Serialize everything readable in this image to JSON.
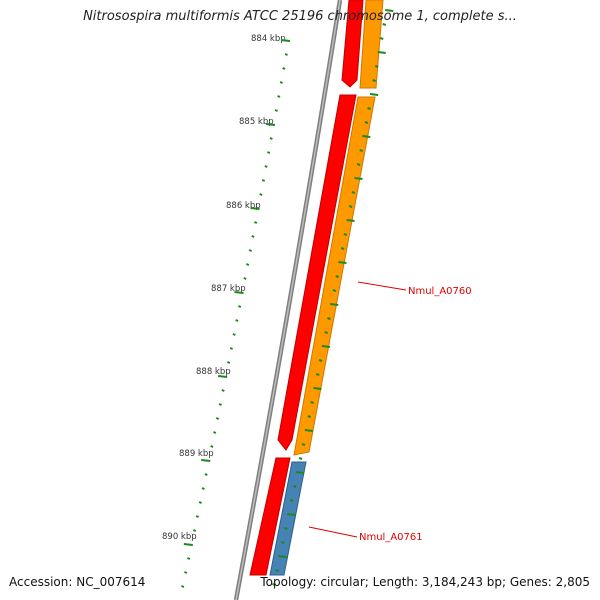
{
  "title": "Nitrosospira multiformis ATCC 25196 chromosome 1, complete s...",
  "footer": {
    "accession": "Accession: NC_007614",
    "summary": "Topology: circular; Length: 3,184,243 bp; Genes: 2,805"
  },
  "ruler": {
    "labels": [
      "884 kbp",
      "885 kbp",
      "886 kbp",
      "887 kbp",
      "888 kbp",
      "889 kbp",
      "890 kbp"
    ],
    "color": "#1a8a1a"
  },
  "genes": [
    {
      "label": "Nmul_A0760",
      "color": "#ff9900"
    },
    {
      "label": "Nmul_A0761",
      "color": "#4682b4"
    }
  ],
  "colors": {
    "backbone": "#808080",
    "red_track": "#ff0000",
    "label_line": "#e00000"
  }
}
